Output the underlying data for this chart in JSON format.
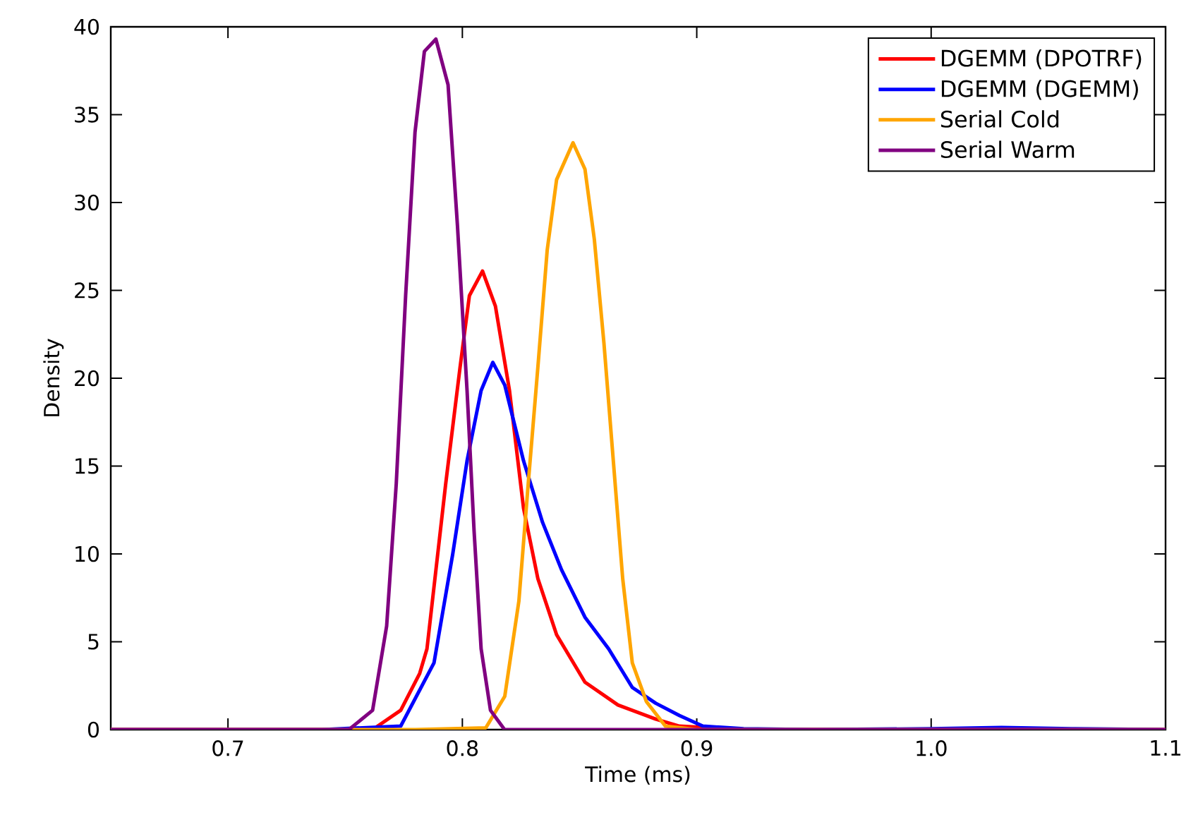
{
  "chart_data": {
    "type": "line",
    "xlabel": "Time (ms)",
    "ylabel": "Density",
    "xlim": [
      0.65,
      1.1
    ],
    "xticks": [
      0.7,
      0.8,
      0.9,
      {
        "value": 1.0,
        "label": "1.0"
      },
      1.1
    ],
    "ylim": [
      0,
      40
    ],
    "yticks": [
      0,
      5,
      10,
      15,
      20,
      25,
      30,
      35,
      40
    ],
    "legend": "top right",
    "line_style": "solid",
    "series": [
      {
        "name": "DGEMM (DPOTRF)",
        "color": "#ff0000",
        "x": [
          0.65,
          0.74,
          0.7617,
          0.7737,
          0.7818,
          0.7849,
          0.7929,
          0.799,
          0.803,
          0.8086,
          0.8141,
          0.8201,
          0.8261,
          0.8322,
          0.8402,
          0.8523,
          0.8664,
          0.8825,
          0.8926,
          0.92,
          1.1
        ],
        "values": [
          0,
          0,
          0,
          1.1,
          3.2,
          4.6,
          14.0,
          20.6,
          24.7,
          26.1,
          24.1,
          19.3,
          12.6,
          8.6,
          5.4,
          2.7,
          1.4,
          0.6,
          0.2,
          0,
          0
        ]
      },
      {
        "name": "DGEMM (DGEMM)",
        "color": "#0000ff",
        "x": [
          0.65,
          0.74,
          0.7737,
          0.7879,
          0.7959,
          0.802,
          0.808,
          0.813,
          0.8181,
          0.8261,
          0.8342,
          0.8423,
          0.8523,
          0.8624,
          0.8725,
          0.8825,
          0.8926,
          0.9026,
          0.92,
          0.95,
          1.0,
          1.03,
          1.06,
          1.1
        ],
        "values": [
          0,
          0,
          0.2,
          3.8,
          10.0,
          15.3,
          19.3,
          20.9,
          19.6,
          15.3,
          11.8,
          9.1,
          6.4,
          4.6,
          2.4,
          1.5,
          0.8,
          0.2,
          0.05,
          0,
          0.05,
          0.12,
          0.05,
          0
        ]
      },
      {
        "name": "Serial Cold",
        "color": "#ffa500",
        "x": [
          0.65,
          0.78,
          0.81,
          0.8181,
          0.8241,
          0.8281,
          0.8322,
          0.8362,
          0.8402,
          0.8472,
          0.8523,
          0.8563,
          0.8604,
          0.8644,
          0.8684,
          0.8725,
          0.8785,
          0.8866,
          0.9,
          1.1
        ],
        "values": [
          0,
          0,
          0.1,
          1.9,
          7.3,
          14.0,
          20.6,
          27.3,
          31.3,
          33.4,
          31.9,
          27.9,
          22.0,
          15.3,
          8.6,
          3.8,
          1.6,
          0.2,
          0,
          0
        ]
      },
      {
        "name": "Serial Warm",
        "color": "#800080",
        "x": [
          0.65,
          0.74,
          0.7516,
          0.7617,
          0.7677,
          0.7718,
          0.7758,
          0.7798,
          0.7838,
          0.7887,
          0.7939,
          0.7979,
          0.802,
          0.805,
          0.808,
          0.812,
          0.818,
          0.83,
          1.1
        ],
        "values": [
          0,
          0,
          0,
          1.1,
          5.9,
          14.0,
          24.7,
          34.0,
          38.6,
          39.3,
          36.7,
          28.7,
          19.3,
          11.3,
          4.6,
          1.1,
          0,
          0,
          0
        ]
      }
    ]
  }
}
